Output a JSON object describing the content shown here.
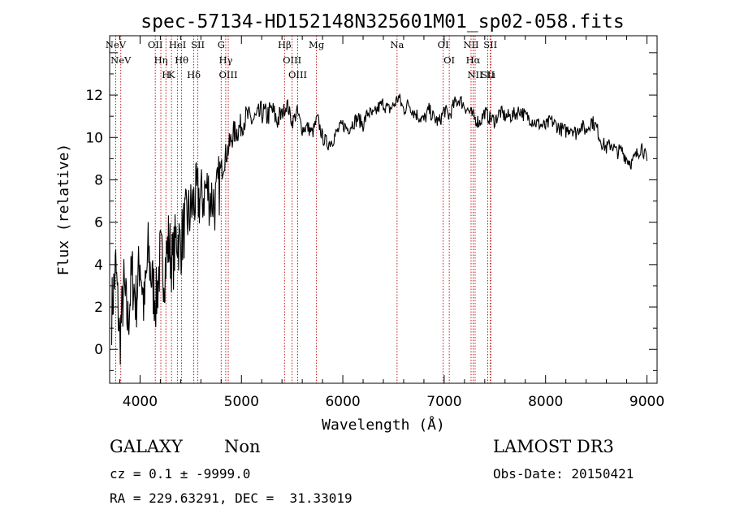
{
  "chart_data": {
    "type": "line",
    "title": "spec-57134-HD152148N325601M01_sp02-058.fits",
    "xlabel": "Wavelength (Å)",
    "ylabel": "Flux (relative)",
    "xlim": [
      3700,
      9100
    ],
    "ylim": [
      -1.6,
      14.8
    ],
    "xticks": [
      4000,
      5000,
      6000,
      7000,
      8000,
      9000
    ],
    "yticks": [
      0,
      2,
      4,
      6,
      8,
      10,
      12
    ],
    "grid": false,
    "series": [
      {
        "x": [
          3720,
          3760,
          3800,
          3840,
          3880,
          3920,
          3960,
          4000,
          4040,
          4080,
          4120,
          4160,
          4200,
          4240,
          4280,
          4320,
          4360,
          4400,
          4440,
          4480,
          4520,
          4560,
          4600,
          4650,
          4700,
          4750,
          4800,
          4840,
          4880,
          4920,
          4960,
          5000,
          5050,
          5100,
          5150,
          5200,
          5250,
          5300,
          5350,
          5400,
          5450,
          5500,
          5550,
          5600,
          5650,
          5700,
          5750,
          5800,
          5850,
          5900,
          5950,
          6000,
          6050,
          6100,
          6150,
          6200,
          6250,
          6300,
          6350,
          6400,
          6450,
          6500,
          6550,
          6600,
          6650,
          6700,
          6750,
          6800,
          6850,
          6900,
          6950,
          7000,
          7050,
          7100,
          7150,
          7200,
          7250,
          7300,
          7350,
          7400,
          7450,
          7500,
          7550,
          7600,
          7650,
          7700,
          7750,
          7800,
          7850,
          7900,
          7950,
          8000,
          8050,
          8100,
          8150,
          8200,
          8250,
          8300,
          8350,
          8400,
          8450,
          8500,
          8550,
          8600,
          8650,
          8700,
          8750,
          8800,
          8850,
          8900,
          8950,
          9000
        ],
        "values": [
          1.8,
          3.9,
          0.4,
          2.9,
          1.2,
          3.6,
          2.2,
          4.3,
          1.9,
          4.6,
          3.1,
          2.3,
          4.4,
          3.6,
          5.1,
          4.0,
          5.4,
          4.9,
          5.9,
          6.3,
          6.8,
          7.3,
          7.0,
          7.6,
          7.2,
          6.9,
          8.4,
          9.1,
          9.6,
          10.2,
          10.3,
          10.6,
          11.0,
          10.8,
          10.9,
          11.2,
          11.0,
          11.3,
          10.8,
          11.1,
          11.6,
          10.7,
          11.2,
          10.4,
          10.5,
          10.2,
          10.9,
          10.0,
          9.7,
          9.9,
          10.3,
          10.6,
          10.4,
          10.7,
          10.9,
          10.6,
          11.2,
          11.0,
          11.4,
          11.6,
          11.3,
          11.5,
          11.9,
          11.3,
          11.6,
          11.2,
          11.0,
          10.8,
          11.3,
          10.9,
          10.7,
          11.3,
          11.0,
          11.6,
          11.8,
          11.5,
          11.2,
          10.9,
          10.7,
          11.2,
          10.9,
          10.8,
          11.2,
          11.0,
          11.0,
          11.1,
          11.3,
          11.0,
          10.9,
          10.7,
          10.6,
          10.5,
          10.8,
          10.6,
          10.4,
          10.3,
          10.5,
          10.2,
          10.6,
          10.3,
          10.8,
          10.5,
          9.8,
          9.5,
          9.7,
          9.3,
          9.4,
          9.0,
          8.8,
          9.2,
          9.6,
          8.9
        ]
      }
    ],
    "lines": [
      {
        "x": 3760,
        "label": "NeV"
      },
      {
        "x": 3810,
        "label": "NeV"
      },
      {
        "x": 4150,
        "label": "OII"
      },
      {
        "x": 4205,
        "label": "Hη"
      },
      {
        "x": 4255,
        "label": "H"
      },
      {
        "x": 4310,
        "label": "K"
      },
      {
        "x": 4370,
        "label": "HeI"
      },
      {
        "x": 4410,
        "label": "Hθ"
      },
      {
        "x": 4530,
        "label": "Hδ"
      },
      {
        "x": 4570,
        "label": "SII"
      },
      {
        "x": 4800,
        "label": "G"
      },
      {
        "x": 4845,
        "label": "Hγ"
      },
      {
        "x": 4870,
        "label": "OIII"
      },
      {
        "x": 5425,
        "label": "Hβ"
      },
      {
        "x": 5500,
        "label": "OIII"
      },
      {
        "x": 5555,
        "label": "OIII"
      },
      {
        "x": 5740,
        "label": "Mg"
      },
      {
        "x": 6535,
        "label": "Na"
      },
      {
        "x": 6990,
        "label": "OI"
      },
      {
        "x": 7050,
        "label": "OI"
      },
      {
        "x": 7265,
        "label": "NII"
      },
      {
        "x": 7285,
        "label": "Hα"
      },
      {
        "x": 7305,
        "label": "NII"
      },
      {
        "x": 7430,
        "label": "SII"
      },
      {
        "x": 7455,
        "label": "SII"
      },
      {
        "x": 7460,
        "label": "Li"
      }
    ]
  },
  "info": {
    "class": "GALAXY",
    "subclass": "Non",
    "survey": "LAMOST DR3",
    "cz": "cz = 0.1 ± -9999.0",
    "obs_date": "Obs-Date: 20150421",
    "coords": "RA = 229.63291, DEC =  31.33019"
  }
}
